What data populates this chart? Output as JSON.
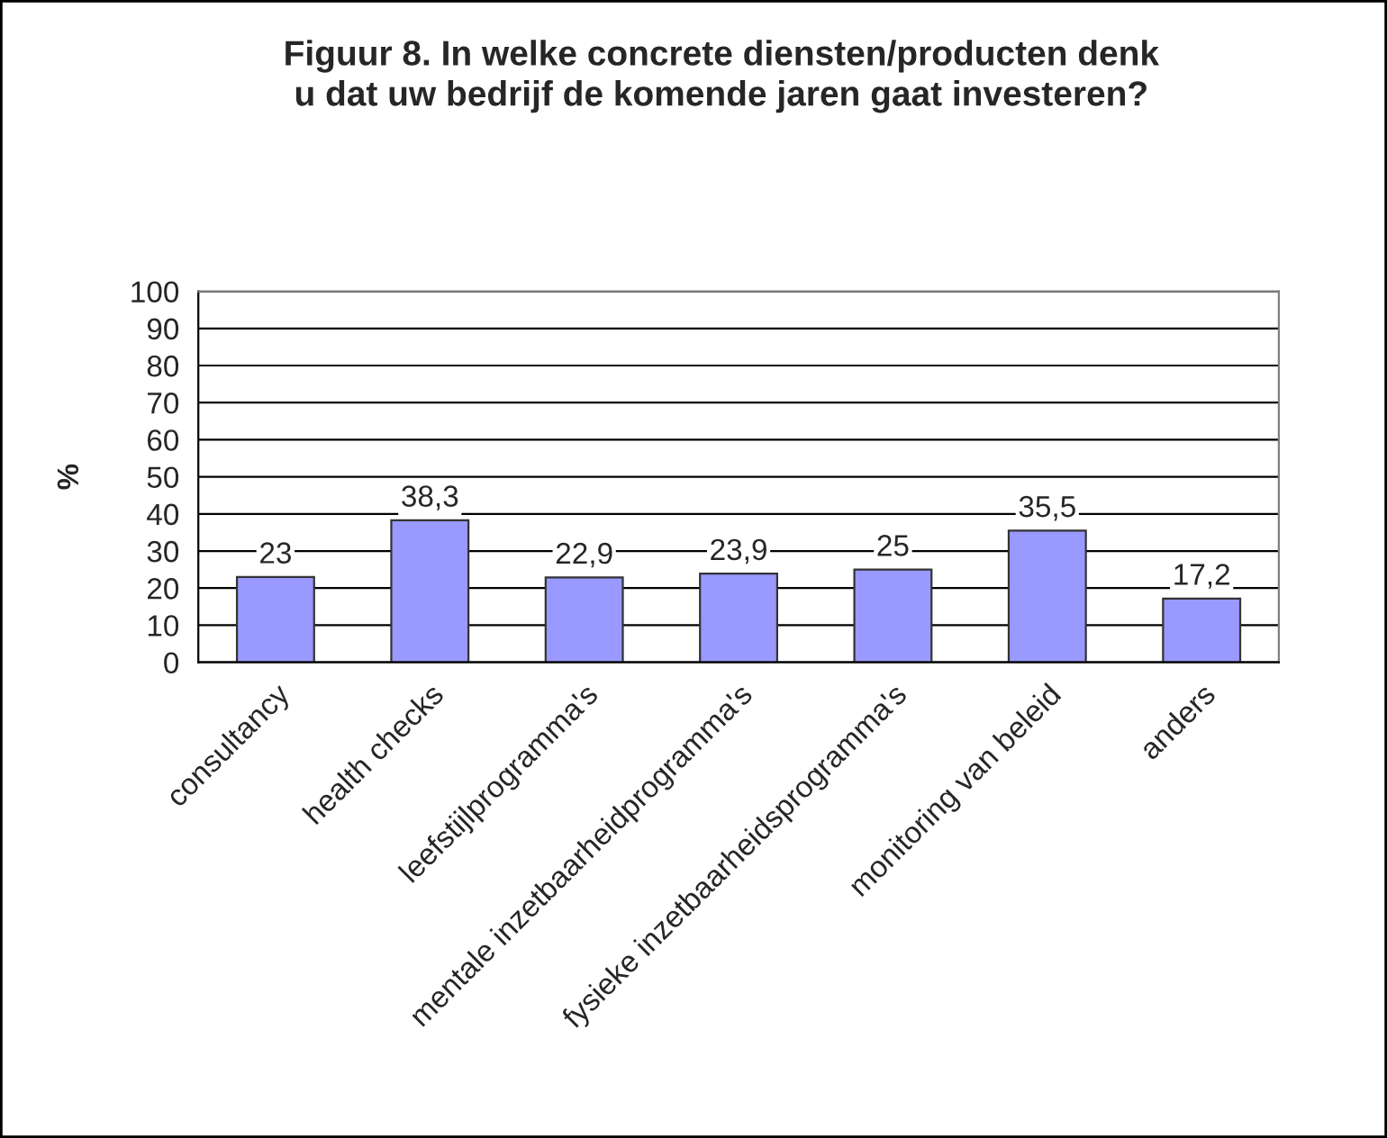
{
  "chart_data": {
    "type": "bar",
    "title": "Figuur 8. In welke concrete diensten/producten denk\nu dat uw bedrijf de komende jaren gaat investeren?",
    "ylabel": "%",
    "categories": [
      "consultancy",
      "health checks",
      "leefstijlprogramma's",
      "mentale inzetbaarheidprogramma's",
      "fysieke inzetbaarheidsprogramma's",
      "monitoring van beleid",
      "anders"
    ],
    "values": [
      23,
      38.3,
      22.9,
      23.9,
      25,
      35.5,
      17.2
    ],
    "value_labels": [
      "23",
      "38,3",
      "22,9",
      "23,9",
      "25",
      "35,5",
      "17,2"
    ],
    "color": "#9999ff",
    "ylim": [
      0,
      100
    ],
    "yticks": [
      0,
      10,
      20,
      30,
      40,
      50,
      60,
      70,
      80,
      90,
      100
    ],
    "grid": "y",
    "legend": false
  }
}
